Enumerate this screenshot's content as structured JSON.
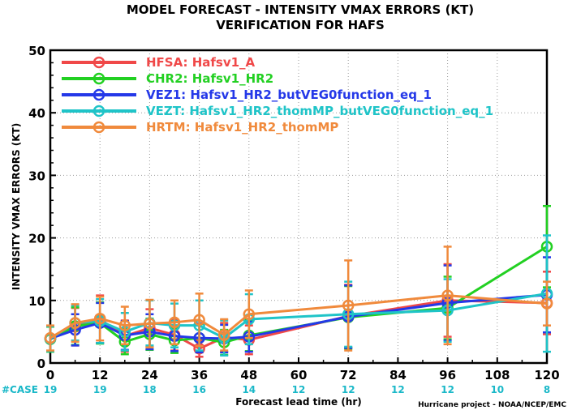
{
  "chart_data": {
    "type": "line",
    "title": "MODEL FORECAST - INTENSITY VMAX ERRORS (KT)",
    "subtitle": "VERIFICATION FOR HAFS",
    "xlabel": "Forecast lead time (hr)",
    "ylabel": "INTENSITY VMAX ERRORS  (KT)",
    "xlim": [
      0,
      120
    ],
    "ylim": [
      0,
      50
    ],
    "xticks": [
      0,
      12,
      24,
      36,
      48,
      60,
      72,
      84,
      96,
      108,
      120
    ],
    "yticks": [
      0,
      10,
      20,
      30,
      40,
      50
    ],
    "grid": true,
    "legend_position": "top-left",
    "case_label": "#CASE",
    "case_x": [
      0,
      12,
      24,
      36,
      48,
      60,
      72,
      84,
      96,
      108,
      120
    ],
    "case_counts": [
      "19",
      "19",
      "18",
      "16",
      "14",
      "12",
      "12",
      "12",
      "12",
      "10",
      "8"
    ],
    "credit": "Hurricane project - NOAA/NCEP/EMC",
    "series": [
      {
        "name": "HFSA:  Hafsv1_A",
        "color": "#f04848",
        "x": [
          0,
          6,
          12,
          18,
          24,
          30,
          36,
          42,
          48,
          72,
          96,
          120
        ],
        "y": [
          3.9,
          5.8,
          7.0,
          4.3,
          5.6,
          4.5,
          2.3,
          4.1,
          3.7,
          7.5,
          10.0,
          9.6
        ],
        "err": [
          2.0,
          3.0,
          3.8,
          2.5,
          3.0,
          2.5,
          1.3,
          2.3,
          2.3,
          5.0,
          5.8,
          5.0
        ]
      },
      {
        "name": "CHR2:  Hafsv1_HR2",
        "color": "#22d022",
        "x": [
          0,
          6,
          12,
          18,
          24,
          30,
          36,
          42,
          48,
          72,
          96,
          120
        ],
        "y": [
          3.8,
          5.9,
          6.4,
          3.4,
          4.6,
          3.6,
          4.0,
          3.3,
          4.4,
          7.3,
          8.8,
          18.6
        ],
        "err": [
          2.0,
          3.0,
          3.3,
          2.0,
          2.5,
          2.0,
          2.2,
          2.0,
          2.5,
          5.0,
          5.0,
          6.5
        ]
      },
      {
        "name": "VEZ1:  Hafsv1_HR2_butVEG0function_eq_1",
        "color": "#2438e8",
        "x": [
          0,
          6,
          12,
          18,
          24,
          30,
          36,
          42,
          48,
          72,
          96,
          120
        ],
        "y": [
          3.9,
          5.3,
          6.4,
          4.4,
          5.0,
          4.3,
          4.0,
          3.9,
          4.2,
          7.4,
          9.6,
          10.9
        ],
        "err": [
          2.0,
          2.5,
          3.2,
          2.3,
          2.8,
          2.4,
          2.3,
          2.2,
          2.4,
          5.0,
          6.0,
          6.0
        ]
      },
      {
        "name": "VEZT:  Hafsv1_HR2_thomMP_butVEG0function_eq_1",
        "color": "#1fc4c8",
        "x": [
          0,
          6,
          12,
          18,
          24,
          30,
          36,
          42,
          48,
          72,
          96,
          120
        ],
        "y": [
          3.9,
          6.4,
          6.7,
          5.0,
          6.4,
          6.0,
          6.0,
          4.0,
          7.0,
          7.8,
          8.4,
          11.1
        ],
        "err": [
          2.0,
          2.8,
          3.5,
          3.0,
          3.6,
          3.5,
          4.0,
          2.8,
          4.0,
          5.2,
          5.0,
          9.3
        ]
      },
      {
        "name": "HRTM:  Hafsv1_HR2_thomMP",
        "color": "#f08a3c",
        "x": [
          0,
          6,
          12,
          18,
          24,
          30,
          36,
          42,
          48,
          72,
          96,
          120
        ],
        "y": [
          4.0,
          6.4,
          7.1,
          6.0,
          6.3,
          6.5,
          6.9,
          4.5,
          7.8,
          9.2,
          10.8,
          9.5
        ],
        "err": [
          2.0,
          3.0,
          3.5,
          3.0,
          3.8,
          3.5,
          4.2,
          2.5,
          3.8,
          7.2,
          7.8,
          3.5
        ]
      }
    ]
  }
}
